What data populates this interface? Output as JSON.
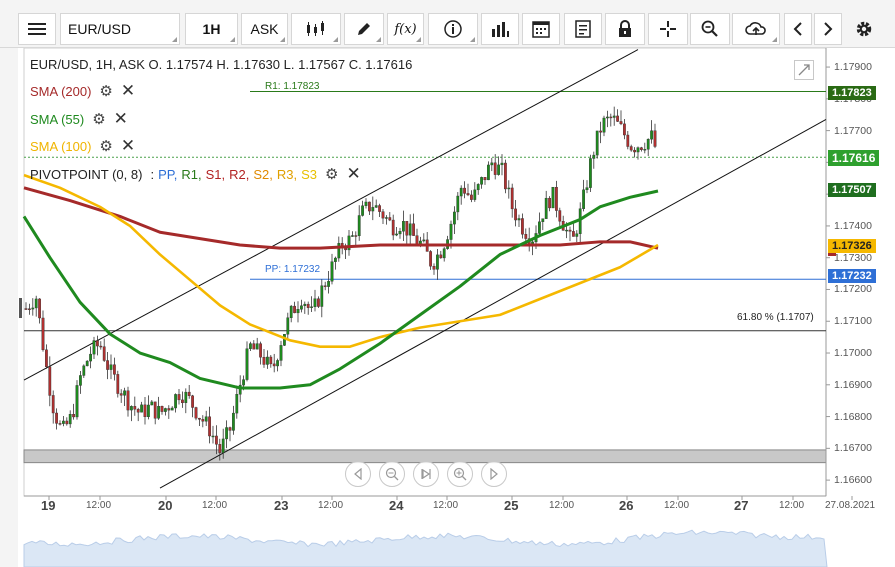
{
  "toolbar": {
    "symbol": "EUR/USD",
    "timeframe": "1H",
    "price_type": "ASK",
    "fx_label": "f(x)"
  },
  "header": {
    "ohlc": "EUR/USD, 1H, ASK   O. 1.17574 H. 1.17630 L. 1.17567 C. 1.17616"
  },
  "indicators": {
    "sma200": "SMA (200)",
    "sma55": "SMA (55)",
    "sma100": "SMA (100)",
    "pivot_prefix": "PIVOTPOINT (0, 8)",
    "pivot_sep": ":",
    "pivot_items": [
      {
        "label": "PP,",
        "color": "#2e6fd6"
      },
      {
        "label": "R1,",
        "color": "#2a7a1a"
      },
      {
        "label": "S1,",
        "color": "#b22222"
      },
      {
        "label": "R2,",
        "color": "#b22222"
      },
      {
        "label": "S2,",
        "color": "#e08a00"
      },
      {
        "label": "R3,",
        "color": "#e0a000"
      },
      {
        "label": "S3",
        "color": "#e8c000"
      }
    ]
  },
  "levels": {
    "r1_label": "R1: 1.17823",
    "pp_label": "PP: 1.17232",
    "fib_label": "61.80 % (1.1707)"
  },
  "price_tags": {
    "r1": "1.17823",
    "current": "1.17616",
    "sma55": "1.17507",
    "sma100": "1.17326",
    "pp": "1.17232"
  },
  "y_ticks": [
    "1.17900",
    "1.17800",
    "1.17700",
    "1.17600",
    "1.17500",
    "1.17400",
    "1.17300",
    "1.17200",
    "1.17100",
    "1.17000",
    "1.16900",
    "1.16800",
    "1.16700",
    "1.16600"
  ],
  "x_ticks": [
    {
      "label": "19",
      "day": true
    },
    {
      "label": "12:00",
      "day": false
    },
    {
      "label": "20",
      "day": true
    },
    {
      "label": "12:00",
      "day": false
    },
    {
      "label": "23",
      "day": true
    },
    {
      "label": "12:00",
      "day": false
    },
    {
      "label": "24",
      "day": true
    },
    {
      "label": "12:00",
      "day": false
    },
    {
      "label": "25",
      "day": true
    },
    {
      "label": "12:00",
      "day": false
    },
    {
      "label": "26",
      "day": true
    },
    {
      "label": "12:00",
      "day": false
    },
    {
      "label": "27",
      "day": true
    },
    {
      "label": "12:00",
      "day": false
    },
    {
      "label": "27.08.2021",
      "day": false
    }
  ],
  "colors": {
    "sma200": "#a52a2a",
    "sma55": "#1f8a1f",
    "sma100": "#f5b800",
    "r1": "#2a7a1a",
    "pp": "#2e6fd6",
    "bull": "#1e8a1e",
    "bear": "#b03030"
  },
  "chart_data": {
    "type": "candlestick",
    "y_range": [
      1.1655,
      1.1796
    ],
    "series": [
      {
        "name": "SMA (200)",
        "color": "#a52a2a"
      },
      {
        "name": "SMA (55)",
        "color": "#1f8a1f"
      },
      {
        "name": "SMA (100)",
        "color": "#f5b800"
      }
    ],
    "levels": [
      {
        "name": "R1",
        "value": 1.17823
      },
      {
        "name": "PP",
        "value": 1.17232
      },
      {
        "name": "61.80 %",
        "value": 1.1707
      }
    ],
    "last": {
      "open": 1.17574,
      "high": 1.1763,
      "low": 1.17567,
      "close": 1.17616
    }
  }
}
